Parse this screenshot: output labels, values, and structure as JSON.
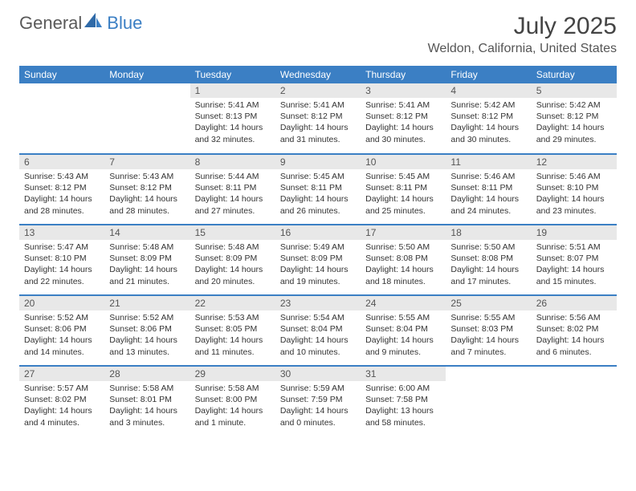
{
  "brand": {
    "name1": "General",
    "name2": "Blue"
  },
  "title": "July 2025",
  "location": "Weldon, California, United States",
  "colors": {
    "header_bg": "#3b7fc4",
    "header_fg": "#ffffff",
    "daynum_bg": "#e8e8e8",
    "row_divider": "#3b7fc4",
    "text": "#333333",
    "logo_gray": "#5a5a5a",
    "logo_blue": "#3b7fc4",
    "page_bg": "#ffffff"
  },
  "weekdays": [
    "Sunday",
    "Monday",
    "Tuesday",
    "Wednesday",
    "Thursday",
    "Friday",
    "Saturday"
  ],
  "weeks": [
    [
      null,
      null,
      {
        "n": "1",
        "sr": "Sunrise: 5:41 AM",
        "ss": "Sunset: 8:13 PM",
        "dl": "Daylight: 14 hours and 32 minutes."
      },
      {
        "n": "2",
        "sr": "Sunrise: 5:41 AM",
        "ss": "Sunset: 8:12 PM",
        "dl": "Daylight: 14 hours and 31 minutes."
      },
      {
        "n": "3",
        "sr": "Sunrise: 5:41 AM",
        "ss": "Sunset: 8:12 PM",
        "dl": "Daylight: 14 hours and 30 minutes."
      },
      {
        "n": "4",
        "sr": "Sunrise: 5:42 AM",
        "ss": "Sunset: 8:12 PM",
        "dl": "Daylight: 14 hours and 30 minutes."
      },
      {
        "n": "5",
        "sr": "Sunrise: 5:42 AM",
        "ss": "Sunset: 8:12 PM",
        "dl": "Daylight: 14 hours and 29 minutes."
      }
    ],
    [
      {
        "n": "6",
        "sr": "Sunrise: 5:43 AM",
        "ss": "Sunset: 8:12 PM",
        "dl": "Daylight: 14 hours and 28 minutes."
      },
      {
        "n": "7",
        "sr": "Sunrise: 5:43 AM",
        "ss": "Sunset: 8:12 PM",
        "dl": "Daylight: 14 hours and 28 minutes."
      },
      {
        "n": "8",
        "sr": "Sunrise: 5:44 AM",
        "ss": "Sunset: 8:11 PM",
        "dl": "Daylight: 14 hours and 27 minutes."
      },
      {
        "n": "9",
        "sr": "Sunrise: 5:45 AM",
        "ss": "Sunset: 8:11 PM",
        "dl": "Daylight: 14 hours and 26 minutes."
      },
      {
        "n": "10",
        "sr": "Sunrise: 5:45 AM",
        "ss": "Sunset: 8:11 PM",
        "dl": "Daylight: 14 hours and 25 minutes."
      },
      {
        "n": "11",
        "sr": "Sunrise: 5:46 AM",
        "ss": "Sunset: 8:11 PM",
        "dl": "Daylight: 14 hours and 24 minutes."
      },
      {
        "n": "12",
        "sr": "Sunrise: 5:46 AM",
        "ss": "Sunset: 8:10 PM",
        "dl": "Daylight: 14 hours and 23 minutes."
      }
    ],
    [
      {
        "n": "13",
        "sr": "Sunrise: 5:47 AM",
        "ss": "Sunset: 8:10 PM",
        "dl": "Daylight: 14 hours and 22 minutes."
      },
      {
        "n": "14",
        "sr": "Sunrise: 5:48 AM",
        "ss": "Sunset: 8:09 PM",
        "dl": "Daylight: 14 hours and 21 minutes."
      },
      {
        "n": "15",
        "sr": "Sunrise: 5:48 AM",
        "ss": "Sunset: 8:09 PM",
        "dl": "Daylight: 14 hours and 20 minutes."
      },
      {
        "n": "16",
        "sr": "Sunrise: 5:49 AM",
        "ss": "Sunset: 8:09 PM",
        "dl": "Daylight: 14 hours and 19 minutes."
      },
      {
        "n": "17",
        "sr": "Sunrise: 5:50 AM",
        "ss": "Sunset: 8:08 PM",
        "dl": "Daylight: 14 hours and 18 minutes."
      },
      {
        "n": "18",
        "sr": "Sunrise: 5:50 AM",
        "ss": "Sunset: 8:08 PM",
        "dl": "Daylight: 14 hours and 17 minutes."
      },
      {
        "n": "19",
        "sr": "Sunrise: 5:51 AM",
        "ss": "Sunset: 8:07 PM",
        "dl": "Daylight: 14 hours and 15 minutes."
      }
    ],
    [
      {
        "n": "20",
        "sr": "Sunrise: 5:52 AM",
        "ss": "Sunset: 8:06 PM",
        "dl": "Daylight: 14 hours and 14 minutes."
      },
      {
        "n": "21",
        "sr": "Sunrise: 5:52 AM",
        "ss": "Sunset: 8:06 PM",
        "dl": "Daylight: 14 hours and 13 minutes."
      },
      {
        "n": "22",
        "sr": "Sunrise: 5:53 AM",
        "ss": "Sunset: 8:05 PM",
        "dl": "Daylight: 14 hours and 11 minutes."
      },
      {
        "n": "23",
        "sr": "Sunrise: 5:54 AM",
        "ss": "Sunset: 8:04 PM",
        "dl": "Daylight: 14 hours and 10 minutes."
      },
      {
        "n": "24",
        "sr": "Sunrise: 5:55 AM",
        "ss": "Sunset: 8:04 PM",
        "dl": "Daylight: 14 hours and 9 minutes."
      },
      {
        "n": "25",
        "sr": "Sunrise: 5:55 AM",
        "ss": "Sunset: 8:03 PM",
        "dl": "Daylight: 14 hours and 7 minutes."
      },
      {
        "n": "26",
        "sr": "Sunrise: 5:56 AM",
        "ss": "Sunset: 8:02 PM",
        "dl": "Daylight: 14 hours and 6 minutes."
      }
    ],
    [
      {
        "n": "27",
        "sr": "Sunrise: 5:57 AM",
        "ss": "Sunset: 8:02 PM",
        "dl": "Daylight: 14 hours and 4 minutes."
      },
      {
        "n": "28",
        "sr": "Sunrise: 5:58 AM",
        "ss": "Sunset: 8:01 PM",
        "dl": "Daylight: 14 hours and 3 minutes."
      },
      {
        "n": "29",
        "sr": "Sunrise: 5:58 AM",
        "ss": "Sunset: 8:00 PM",
        "dl": "Daylight: 14 hours and 1 minute."
      },
      {
        "n": "30",
        "sr": "Sunrise: 5:59 AM",
        "ss": "Sunset: 7:59 PM",
        "dl": "Daylight: 14 hours and 0 minutes."
      },
      {
        "n": "31",
        "sr": "Sunrise: 6:00 AM",
        "ss": "Sunset: 7:58 PM",
        "dl": "Daylight: 13 hours and 58 minutes."
      },
      null,
      null
    ]
  ]
}
